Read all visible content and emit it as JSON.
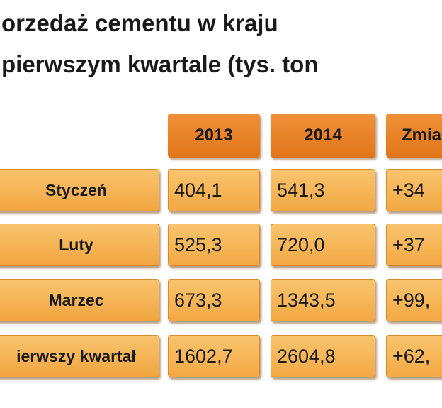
{
  "header": {
    "title_line1": "orzedaż cementu w kraju",
    "title_line2": "pierwszym kwartale (tys. ton"
  },
  "table": {
    "columns": [
      "2013",
      "2014",
      "Zmia"
    ],
    "rows": [
      [
        "Styczeń",
        "404,1",
        "541,3",
        "+34"
      ],
      [
        "Luty",
        "525,3",
        "720,0",
        "+37"
      ],
      [
        "Marzec",
        "673,3",
        "1343,5",
        "+99,"
      ],
      [
        "ierwszy kwartał",
        "1602,7",
        "2604,8",
        "+62,"
      ]
    ]
  }
}
